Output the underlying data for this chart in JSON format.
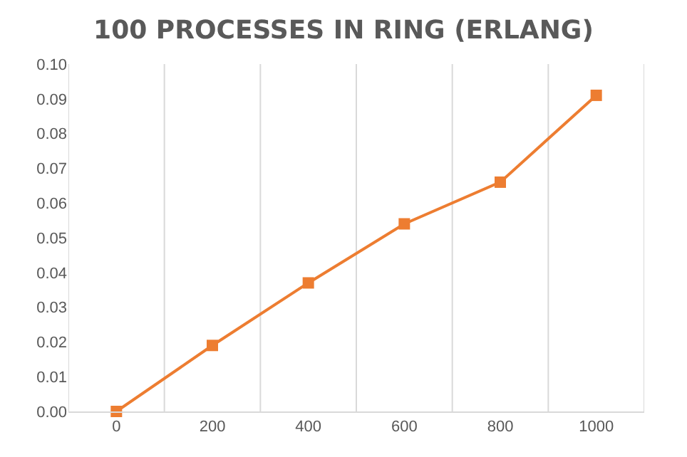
{
  "chart_data": {
    "type": "line",
    "title": "100 PROCESSES IN RING (ERLANG)",
    "categories": [
      "0",
      "200",
      "400",
      "600",
      "800",
      "1000"
    ],
    "series": [
      {
        "color": "#ed7d31",
        "values": [
          0.0,
          0.019,
          0.037,
          0.054,
          0.066,
          0.091
        ]
      }
    ],
    "ylim": [
      0,
      0.1
    ],
    "yticks": [
      {
        "value": 0,
        "label": "0.00"
      },
      {
        "value": 0.01,
        "label": "0.01"
      },
      {
        "value": 0.02,
        "label": "0.02"
      },
      {
        "value": 0.03,
        "label": "0.03"
      },
      {
        "value": 0.04,
        "label": "0.04"
      },
      {
        "value": 0.05,
        "label": "0.05"
      },
      {
        "value": 0.06,
        "label": "0.06"
      },
      {
        "value": 0.07,
        "label": "0.07"
      },
      {
        "value": 0.08,
        "label": "0.08"
      },
      {
        "value": 0.09,
        "label": "0.09"
      },
      {
        "value": 0.1,
        "label": "0.10"
      }
    ],
    "grid": "x",
    "marker": "square",
    "line_style": "solid"
  }
}
